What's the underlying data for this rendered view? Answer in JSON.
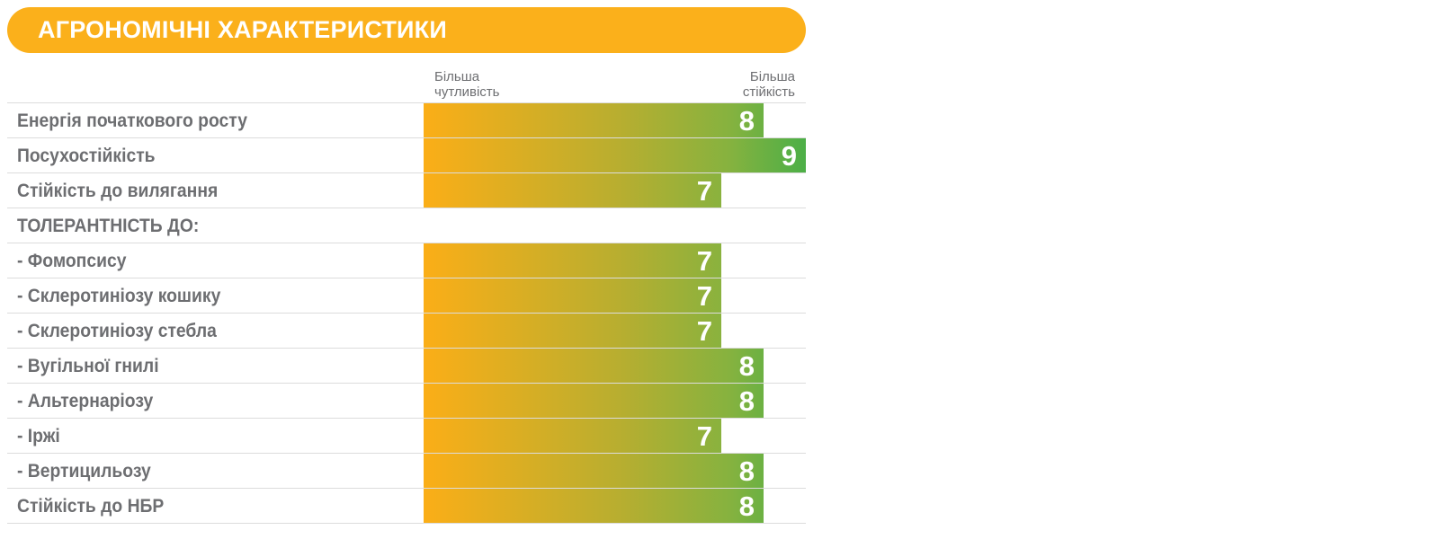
{
  "header": {
    "title": "АГРОНОМІЧНІ ХАРАКТЕРИСТИКИ"
  },
  "scale": {
    "left_line1": "Більша",
    "left_line2": "чутливість",
    "right_line1": "Більша",
    "right_line2": "стійкість"
  },
  "colors": {
    "header": "#fbb01b",
    "bar_start": "#fbae17",
    "bar_end": "#4caf47",
    "label_text": "#6d6e71"
  },
  "chart_data": {
    "type": "bar",
    "orientation": "horizontal",
    "xlim": [
      0,
      9
    ],
    "categories": [
      "Енергія початкового росту",
      "Посухостійкість",
      "Стійкість до вилягання",
      "ТОЛЕРАНТНІСТЬ ДО:",
      "- Фомопсису",
      "- Склеротиніозу кошику",
      "- Склеротиніозу стебла",
      "- Вугільної гнилі",
      "- Альтернаріозу",
      "- Іржі",
      "- Вертицильозу",
      "Стійкість до НБР"
    ],
    "values": [
      8,
      9,
      7,
      null,
      7,
      7,
      7,
      8,
      8,
      7,
      8,
      8
    ]
  }
}
